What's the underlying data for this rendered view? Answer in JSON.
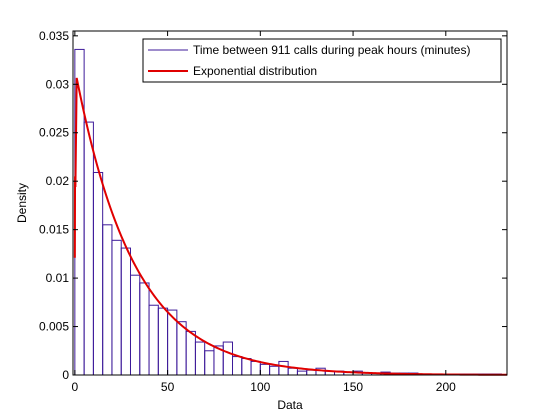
{
  "chart_data": {
    "type": "histogram",
    "xlabel": "Data",
    "ylabel": "Density",
    "xlim": [
      -1,
      233
    ],
    "ylim": [
      0,
      0.0355
    ],
    "grid": false,
    "legend_position": "top-right",
    "x_ticks": [
      0,
      50,
      100,
      150,
      200
    ],
    "y_ticks": [
      0,
      0.005,
      0.01,
      0.015,
      0.02,
      0.025,
      0.03,
      0.035
    ],
    "x_tick_labels": [
      "0",
      "50",
      "100",
      "150",
      "200"
    ],
    "y_tick_labels": [
      "0",
      "0.005",
      "0.01",
      "0.015",
      "0.02",
      "0.025",
      "0.03",
      "0.035"
    ],
    "series": [
      {
        "name": "Time between 911 calls during peak hours (minutes)",
        "kind": "histogram",
        "color": "#3d1a99",
        "bin_start": 0,
        "bin_width": 5,
        "densities": [
          0.0336,
          0.0261,
          0.0209,
          0.0155,
          0.0139,
          0.0131,
          0.0103,
          0.0095,
          0.0072,
          0.0069,
          0.0067,
          0.0055,
          0.0045,
          0.0034,
          0.0025,
          0.003,
          0.0034,
          0.0019,
          0.0017,
          0.0014,
          0.0011,
          0.0009,
          0.0014,
          0.0007,
          0.0004,
          0.0005,
          0.0007,
          0.0004,
          0.0004,
          0.0003,
          0.0004,
          0.0002,
          0.0002,
          0.0003,
          0.0002,
          0.0002,
          0.0002,
          0.0001,
          0.0001,
          0.0001,
          0.0001,
          0.0001,
          0.0001,
          0.0001,
          0.0001,
          0.0001
        ]
      },
      {
        "name": "Exponential distribution",
        "kind": "line",
        "color": "#e00000",
        "mu": 31.6,
        "x_start": 1,
        "x_end": 233,
        "near_zero_points": [
          {
            "x": 0.0,
            "y": 0.0121
          },
          {
            "x": 0.1,
            "y": 0.0205
          },
          {
            "x": 0.3,
            "y": 0.0194
          }
        ]
      }
    ]
  }
}
